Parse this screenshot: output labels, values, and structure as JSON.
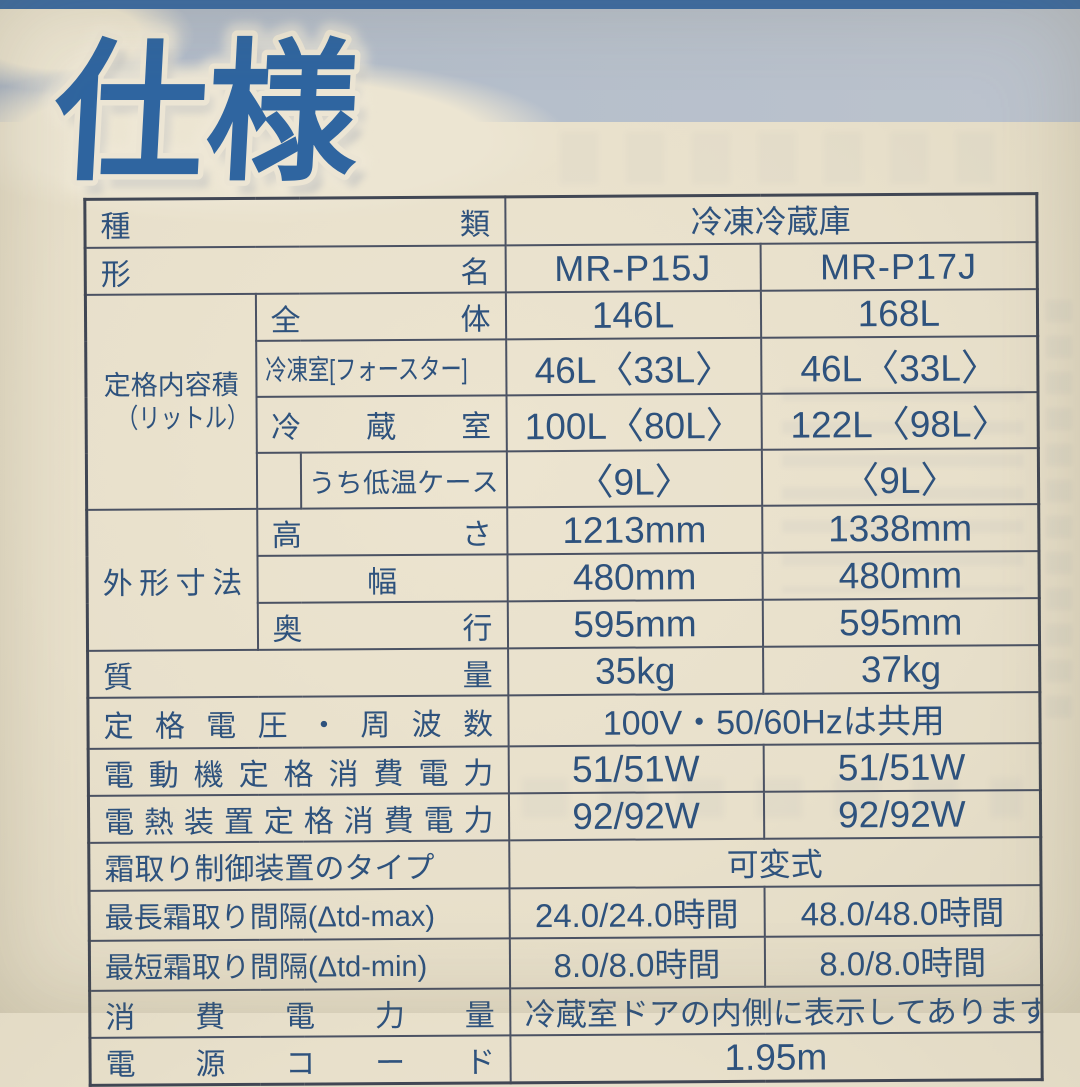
{
  "page": {
    "title": "仕様"
  },
  "colors": {
    "title_blue": "#2f65a0",
    "text_blue": "#2e527d",
    "band_gray_blue": "#b6bfcb",
    "top_strip_blue": "#3a6ba5",
    "paper_cream": "#e9e1cd",
    "table_line": "#4b5263"
  },
  "table": {
    "kind": {
      "label": "種類",
      "value": "冷凍冷蔵庫"
    },
    "model": {
      "label": "形名",
      "v1": "MR-P15J",
      "v2": "MR-P17J"
    },
    "capacity": {
      "group_line1": "定格内容積",
      "group_line2": "（リットル）",
      "total": {
        "label": "全体",
        "v1": "146L",
        "v2": "168L"
      },
      "freezer": {
        "label": "冷凍室[フォースター]",
        "v1": "46L〈33L〉",
        "v2": "46L〈33L〉"
      },
      "fridge": {
        "label": "冷蔵室",
        "v1": "100L〈80L〉",
        "v2": "122L〈98L〉"
      },
      "lowtemp": {
        "label": "うち低温ケース",
        "v1": "〈9L〉",
        "v2": "〈9L〉"
      }
    },
    "dimensions": {
      "group": "外形寸法",
      "height": {
        "label": "高さ",
        "v1": "1213mm",
        "v2": "1338mm"
      },
      "width": {
        "label": "幅",
        "v1": "480mm",
        "v2": "480mm"
      },
      "depth": {
        "label": "奥行",
        "v1": "595mm",
        "v2": "595mm"
      }
    },
    "mass": {
      "label": "質量",
      "v1": "35kg",
      "v2": "37kg"
    },
    "voltage": {
      "label": "定格電圧・周波数",
      "value": "100V・50/60Hzは共用"
    },
    "motor_power": {
      "label": "電動機定格消費電力",
      "v1": "51/51W",
      "v2": "51/51W"
    },
    "heater_power": {
      "label": "電熱装置定格消費電力",
      "v1": "92/92W",
      "v2": "92/92W"
    },
    "defrost_type": {
      "label": "霜取り制御装置のタイプ",
      "value": "可変式"
    },
    "defrost_max": {
      "label": "最長霜取り間隔(Δtd-max)",
      "v1": "24.0/24.0時間",
      "v2": "48.0/48.0時間"
    },
    "defrost_min": {
      "label": "最短霜取り間隔(Δtd-min)",
      "v1": "8.0/8.0時間",
      "v2": "8.0/8.0時間"
    },
    "energy": {
      "label": "消費電力量",
      "value": "冷蔵室ドアの内側に表示してあります"
    },
    "cord": {
      "label": "電源コード",
      "value": "1.95m"
    }
  }
}
